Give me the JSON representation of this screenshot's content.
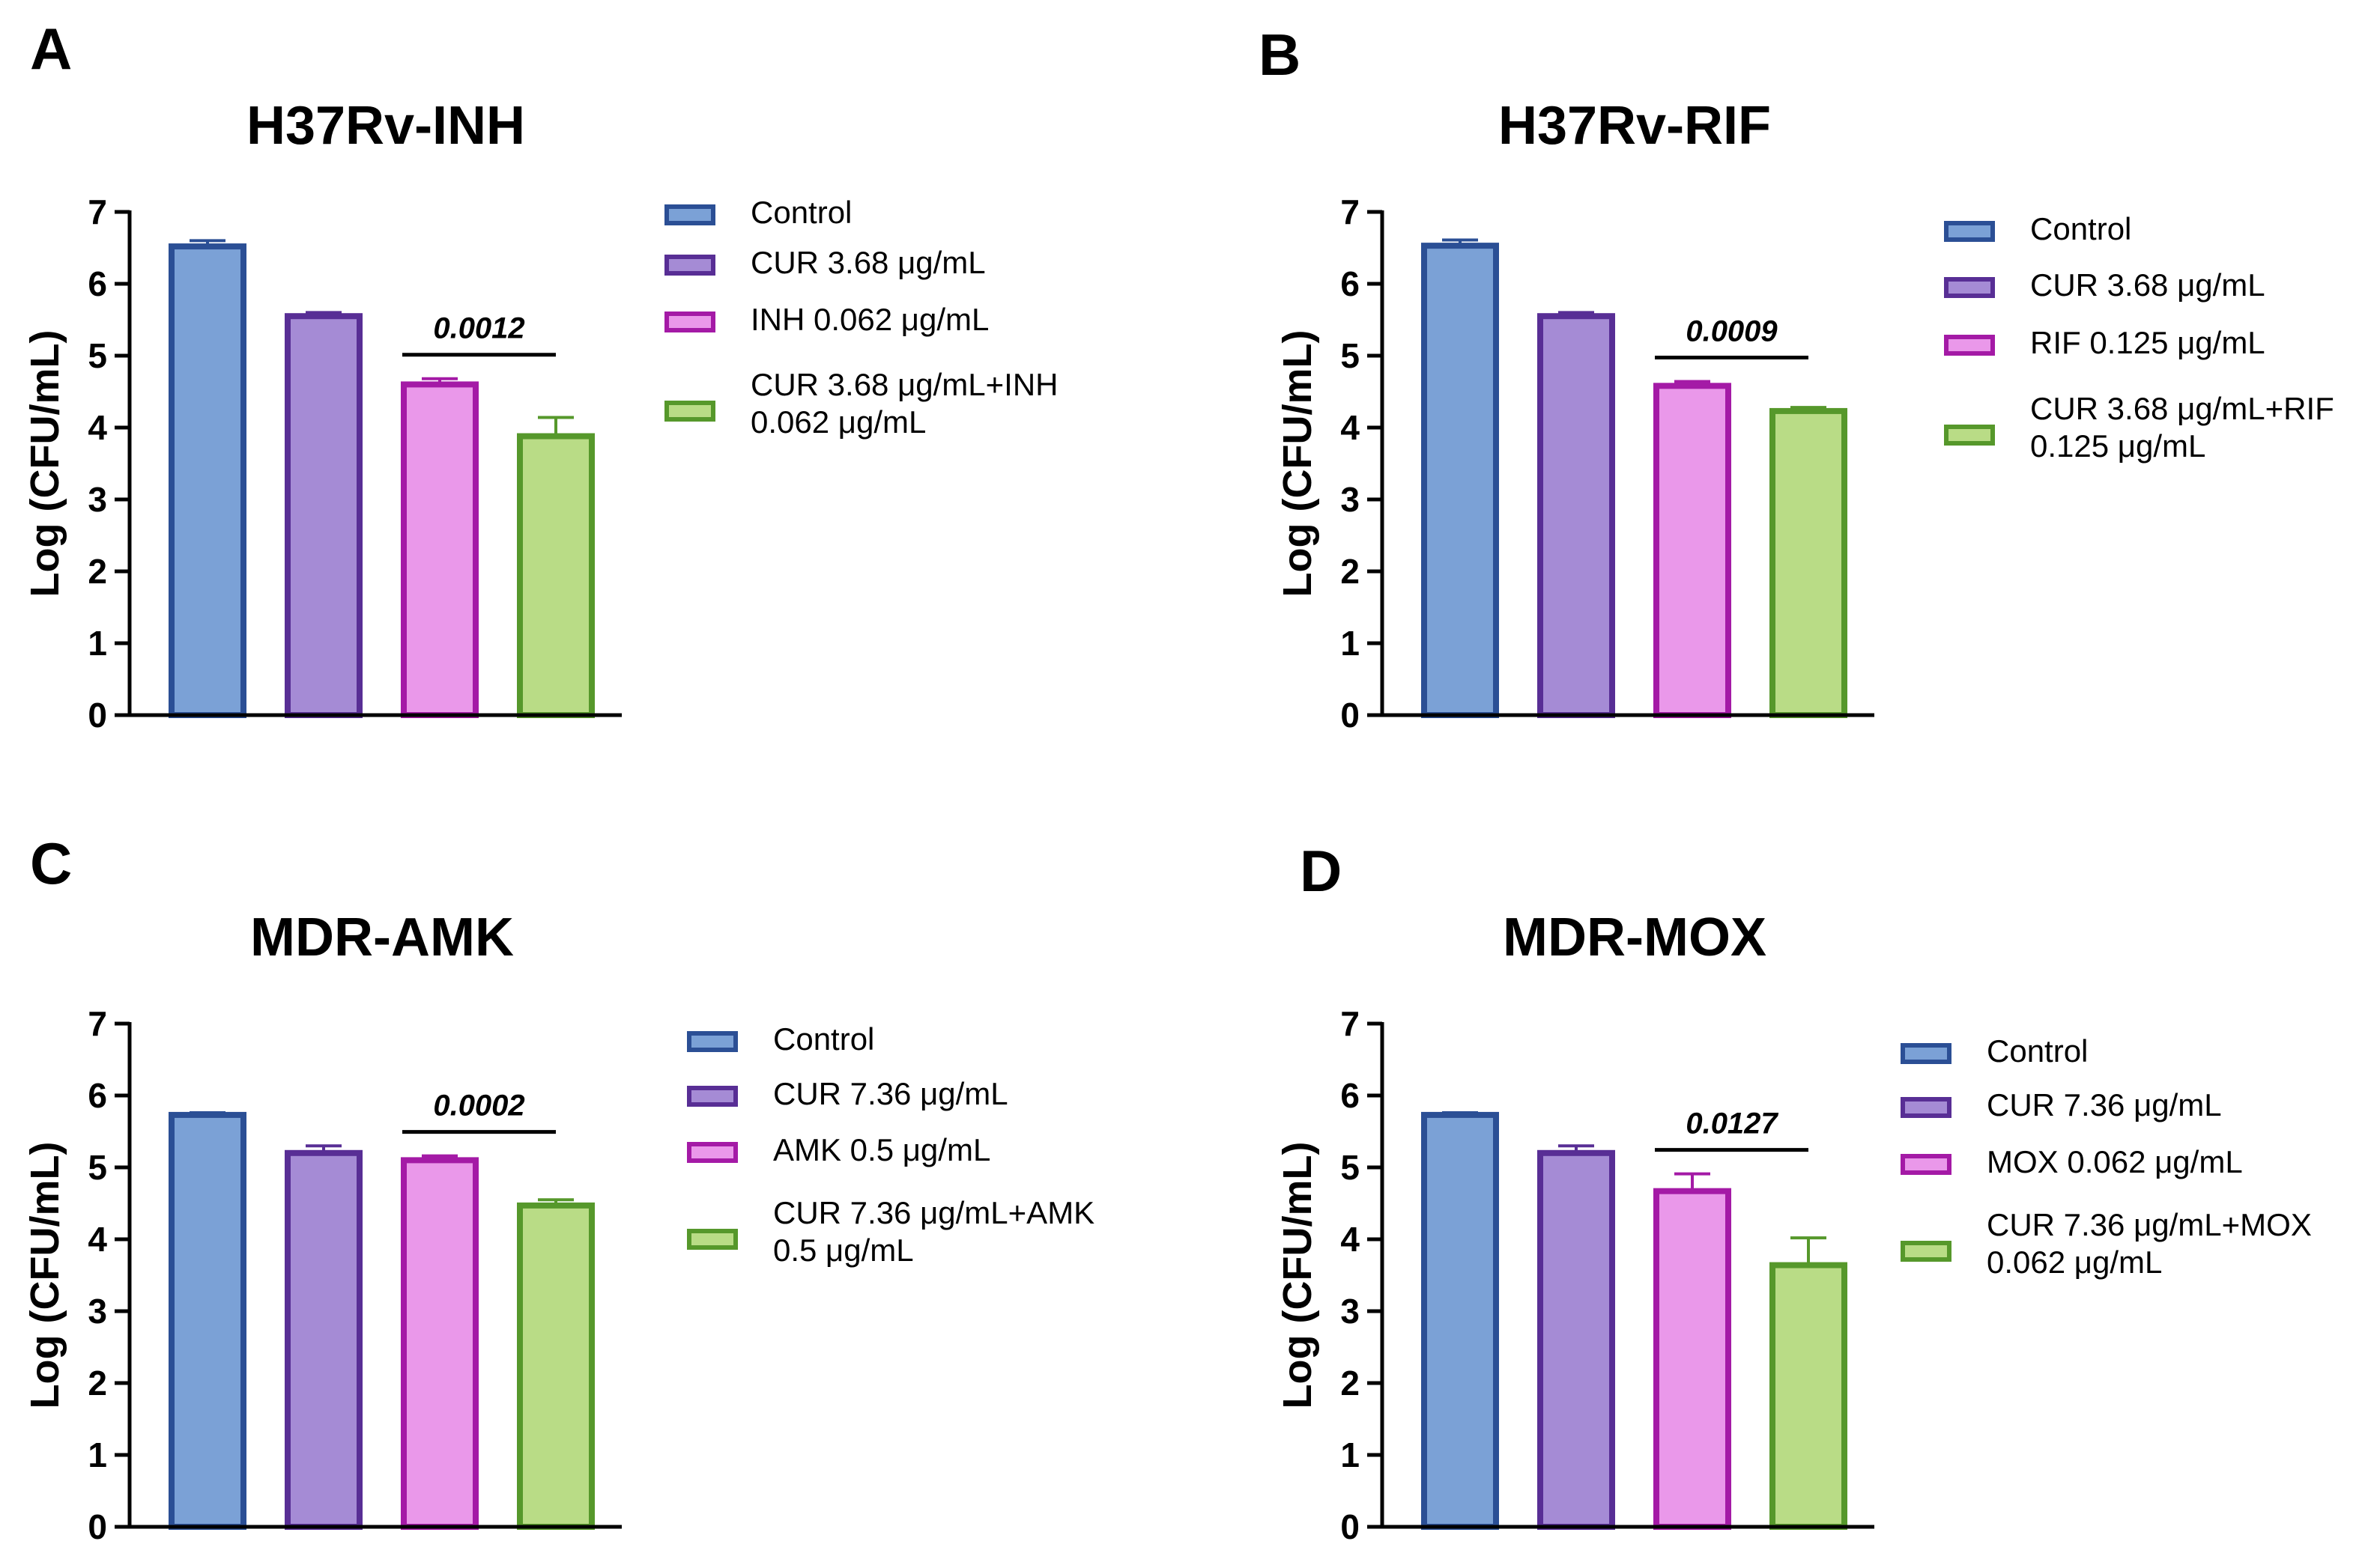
{
  "chart_data": [
    {
      "panel": "A",
      "type": "bar",
      "title": "H37Rv-INH",
      "ylabel": "Log (CFU/mL)",
      "ylim": [
        0,
        7
      ],
      "yticks": [
        "0",
        "1",
        "2",
        "3",
        "4",
        "5",
        "6",
        "7"
      ],
      "categories": [
        "Control",
        "CUR 3.68 μg/mL",
        "INH 0.062 μg/mL",
        "CUR 3.68 μg/mL+INH 0.062 μg/mL"
      ],
      "legend": [
        [
          "Control"
        ],
        [
          "CUR 3.68 μg/mL"
        ],
        [
          "INH 0.062 μg/mL"
        ],
        [
          "CUR 3.68 μg/mL+INH",
          "0.062 μg/mL"
        ]
      ],
      "values": [
        6.52,
        5.55,
        4.6,
        3.88
      ],
      "errors": [
        0.08,
        0.05,
        0.08,
        0.26
      ],
      "pvalue": "0.0012",
      "colors": {
        "fill": [
          "#7ba1d6",
          "#a58bd5",
          "#ea98ea",
          "#b9dc86"
        ],
        "stroke": [
          "#2b4f95",
          "#582e95",
          "#a41aa6",
          "#56982b"
        ]
      }
    },
    {
      "panel": "B",
      "type": "bar",
      "title": "H37Rv-RIF",
      "ylabel": "Log (CFU/mL)",
      "ylim": [
        0,
        7
      ],
      "yticks": [
        "0",
        "1",
        "2",
        "3",
        "4",
        "5",
        "6",
        "7"
      ],
      "categories": [
        "Control",
        "CUR 3.68 μg/mL",
        "RIF 0.125 μg/mL",
        "CUR 3.68 μg/mL+RIF 0.125 μg/mL"
      ],
      "legend": [
        [
          "Control"
        ],
        [
          "CUR 3.68 μg/mL"
        ],
        [
          "RIF 0.125 μg/mL"
        ],
        [
          "CUR 3.68 μg/mL+RIF",
          "0.125 μg/mL"
        ]
      ],
      "values": [
        6.53,
        5.55,
        4.58,
        4.23
      ],
      "errors": [
        0.08,
        0.05,
        0.06,
        0.05
      ],
      "pvalue": "0.0009",
      "colors": {
        "fill": [
          "#7ba1d6",
          "#a58bd5",
          "#ea98ea",
          "#b9dc86"
        ],
        "stroke": [
          "#2b4f95",
          "#582e95",
          "#a41aa6",
          "#56982b"
        ]
      }
    },
    {
      "panel": "C",
      "type": "bar",
      "title": "MDR-AMK",
      "ylabel": "Log (CFU/mL)",
      "ylim": [
        0,
        7
      ],
      "yticks": [
        "0",
        "1",
        "2",
        "3",
        "4",
        "5",
        "6",
        "7"
      ],
      "categories": [
        "Control",
        "CUR 7.36 μg/mL",
        "AMK 0.5 μg/mL",
        "CUR 7.36 μg/mL+AMK 0.5 μg/mL"
      ],
      "legend": [
        [
          "Control"
        ],
        [
          "CUR 7.36 μg/mL"
        ],
        [
          "AMK 0.5 μg/mL"
        ],
        [
          "CUR 7.36 μg/mL+AMK",
          "0.5 μg/mL"
        ]
      ],
      "values": [
        5.73,
        5.2,
        5.1,
        4.47
      ],
      "errors": [
        0.03,
        0.1,
        0.06,
        0.08
      ],
      "pvalue": "0.0002",
      "colors": {
        "fill": [
          "#7ba1d6",
          "#a58bd5",
          "#ea98ea",
          "#b9dc86"
        ],
        "stroke": [
          "#2b4f95",
          "#582e95",
          "#a41aa6",
          "#56982b"
        ]
      }
    },
    {
      "panel": "D",
      "type": "bar",
      "title": "MDR-MOX",
      "ylabel": "Log (CFU/mL)",
      "ylim": [
        0,
        7
      ],
      "yticks": [
        "0",
        "1",
        "2",
        "3",
        "4",
        "5",
        "6",
        "7"
      ],
      "categories": [
        "Control",
        "CUR 7.36 μg/mL",
        "MOX 0.062 μg/mL",
        "CUR 7.36 μg/mL+MOX 0.062 μg/mL"
      ],
      "legend": [
        [
          "Control"
        ],
        [
          "CUR 7.36 μg/mL"
        ],
        [
          "MOX 0.062 μg/mL"
        ],
        [
          "CUR 7.36 μg/mL+MOX",
          "0.062 μg/mL"
        ]
      ],
      "values": [
        5.73,
        5.2,
        4.67,
        3.64
      ],
      "errors": [
        0.03,
        0.1,
        0.24,
        0.38
      ],
      "pvalue": "0.0127",
      "colors": {
        "fill": [
          "#7ba1d6",
          "#a58bd5",
          "#ea98ea",
          "#b9dc86"
        ],
        "stroke": [
          "#2b4f95",
          "#582e95",
          "#a41aa6",
          "#56982b"
        ]
      }
    }
  ]
}
